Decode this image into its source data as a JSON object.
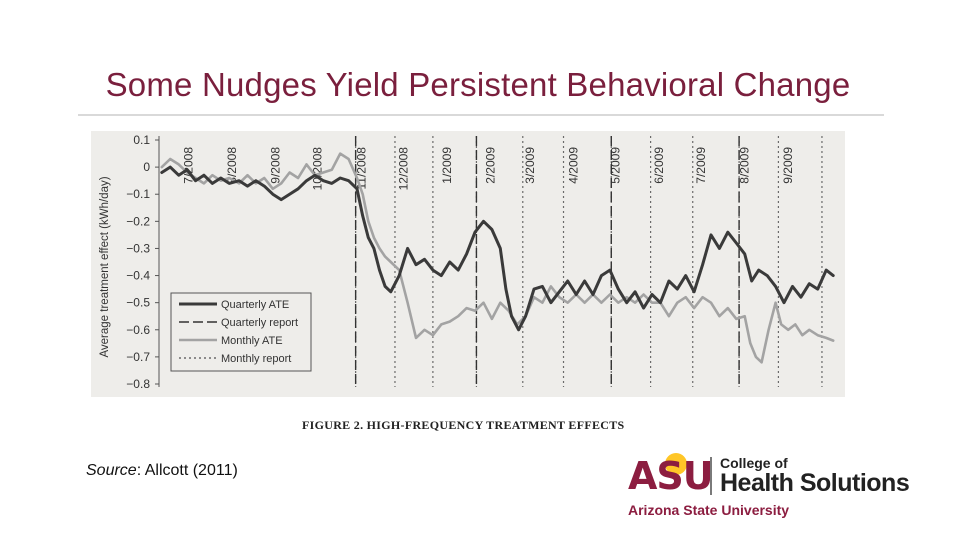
{
  "slide": {
    "title": "Some Nudges Yield Persistent Behavioral Change",
    "source_label": "Source",
    "source_text": ": Allcott (2011)",
    "caption_prefix": "F",
    "caption_small": "IGURE 2. ",
    "caption_text": "FIGURE 2. HIGH-FREQUENCY TREATMENT EFFECTS"
  },
  "logo": {
    "mark": "ASU",
    "line1": "College of",
    "line2": "Health Solutions",
    "line3": "Arizona State University",
    "colors": {
      "maroon": "#8c1d40",
      "gold": "#ffc627"
    }
  },
  "chart_data": {
    "type": "line",
    "title": "",
    "caption": "FIGURE 2. HIGH-FREQUENCY TREATMENT EFFECTS",
    "xlabel": "",
    "ylabel": "Average treatment effect (kWh/day)",
    "ylim": [
      -0.8,
      0.1
    ],
    "yticks": [
      "0.1",
      "0",
      "−0.1",
      "−0.2",
      "−0.3",
      "−0.4",
      "−0.5",
      "−0.6",
      "−0.7",
      "−0.8"
    ],
    "x_domain": [
      "2008-06-10",
      "2009-10-05"
    ],
    "month_labels": [
      "7/2008",
      "8/2008",
      "9/2008",
      "10/2008",
      "11/2008",
      "12/2008",
      "1/2009",
      "2/2009",
      "3/2009",
      "4/2009",
      "5/2009",
      "6/2009",
      "7/2009",
      "8/2009",
      "9/2009"
    ],
    "month_dates": [
      "2008-07-01",
      "2008-08-01",
      "2008-09-01",
      "2008-10-01",
      "2008-11-01",
      "2008-12-01",
      "2009-01-01",
      "2009-02-01",
      "2009-03-01",
      "2009-04-01",
      "2009-05-01",
      "2009-06-01",
      "2009-07-01",
      "2009-08-01",
      "2009-09-01"
    ],
    "quarterly_report_dates": [
      "2008-10-28",
      "2009-01-22",
      "2009-04-28",
      "2009-07-28"
    ],
    "monthly_report_dates": [
      "2008-10-28",
      "2008-11-25",
      "2008-12-22",
      "2009-01-22",
      "2009-02-24",
      "2009-03-25",
      "2009-04-28",
      "2009-05-26",
      "2009-06-25",
      "2009-07-28",
      "2009-08-25",
      "2009-09-25"
    ],
    "legend": {
      "position": "lower-left",
      "entries": [
        "Quarterly ATE",
        "Quarterly report",
        "Monthly ATE",
        "Monthly report"
      ]
    },
    "series": [
      {
        "name": "Quarterly ATE",
        "color": "#3a3a3a",
        "points": [
          [
            "2008-06-12",
            -0.02
          ],
          [
            "2008-06-18",
            0.0
          ],
          [
            "2008-06-24",
            -0.03
          ],
          [
            "2008-06-30",
            -0.01
          ],
          [
            "2008-07-06",
            -0.05
          ],
          [
            "2008-07-12",
            -0.03
          ],
          [
            "2008-07-18",
            -0.06
          ],
          [
            "2008-07-24",
            -0.04
          ],
          [
            "2008-07-30",
            -0.06
          ],
          [
            "2008-08-06",
            -0.05
          ],
          [
            "2008-08-12",
            -0.07
          ],
          [
            "2008-08-18",
            -0.05
          ],
          [
            "2008-08-24",
            -0.07
          ],
          [
            "2008-08-30",
            -0.1
          ],
          [
            "2008-09-05",
            -0.12
          ],
          [
            "2008-09-11",
            -0.1
          ],
          [
            "2008-09-17",
            -0.08
          ],
          [
            "2008-09-23",
            -0.05
          ],
          [
            "2008-09-29",
            -0.03
          ],
          [
            "2008-10-05",
            -0.05
          ],
          [
            "2008-10-11",
            -0.06
          ],
          [
            "2008-10-17",
            -0.04
          ],
          [
            "2008-10-23",
            -0.05
          ],
          [
            "2008-10-29",
            -0.08
          ],
          [
            "2008-11-02",
            -0.18
          ],
          [
            "2008-11-06",
            -0.26
          ],
          [
            "2008-11-10",
            -0.3
          ],
          [
            "2008-11-14",
            -0.38
          ],
          [
            "2008-11-18",
            -0.44
          ],
          [
            "2008-11-22",
            -0.46
          ],
          [
            "2008-11-28",
            -0.4
          ],
          [
            "2008-12-04",
            -0.3
          ],
          [
            "2008-12-10",
            -0.36
          ],
          [
            "2008-12-16",
            -0.34
          ],
          [
            "2008-12-22",
            -0.38
          ],
          [
            "2008-12-28",
            -0.4
          ],
          [
            "2009-01-03",
            -0.35
          ],
          [
            "2009-01-09",
            -0.38
          ],
          [
            "2009-01-15",
            -0.32
          ],
          [
            "2009-01-21",
            -0.24
          ],
          [
            "2009-01-27",
            -0.2
          ],
          [
            "2009-02-02",
            -0.23
          ],
          [
            "2009-02-08",
            -0.3
          ],
          [
            "2009-02-12",
            -0.45
          ],
          [
            "2009-02-16",
            -0.55
          ],
          [
            "2009-02-21",
            -0.6
          ],
          [
            "2009-02-26",
            -0.55
          ],
          [
            "2009-03-04",
            -0.45
          ],
          [
            "2009-03-10",
            -0.44
          ],
          [
            "2009-03-16",
            -0.5
          ],
          [
            "2009-03-22",
            -0.46
          ],
          [
            "2009-03-28",
            -0.42
          ],
          [
            "2009-04-03",
            -0.47
          ],
          [
            "2009-04-09",
            -0.42
          ],
          [
            "2009-04-15",
            -0.47
          ],
          [
            "2009-04-21",
            -0.4
          ],
          [
            "2009-04-27",
            -0.38
          ],
          [
            "2009-05-03",
            -0.45
          ],
          [
            "2009-05-09",
            -0.5
          ],
          [
            "2009-05-15",
            -0.46
          ],
          [
            "2009-05-21",
            -0.52
          ],
          [
            "2009-05-27",
            -0.47
          ],
          [
            "2009-06-02",
            -0.5
          ],
          [
            "2009-06-08",
            -0.42
          ],
          [
            "2009-06-14",
            -0.45
          ],
          [
            "2009-06-20",
            -0.4
          ],
          [
            "2009-06-26",
            -0.46
          ],
          [
            "2009-07-02",
            -0.36
          ],
          [
            "2009-07-08",
            -0.25
          ],
          [
            "2009-07-14",
            -0.3
          ],
          [
            "2009-07-20",
            -0.24
          ],
          [
            "2009-07-26",
            -0.28
          ],
          [
            "2009-08-01",
            -0.32
          ],
          [
            "2009-08-06",
            -0.42
          ],
          [
            "2009-08-11",
            -0.38
          ],
          [
            "2009-08-17",
            -0.4
          ],
          [
            "2009-08-23",
            -0.44
          ],
          [
            "2009-08-29",
            -0.5
          ],
          [
            "2009-09-04",
            -0.44
          ],
          [
            "2009-09-10",
            -0.48
          ],
          [
            "2009-09-16",
            -0.43
          ],
          [
            "2009-09-22",
            -0.45
          ],
          [
            "2009-09-28",
            -0.38
          ],
          [
            "2009-10-03",
            -0.4
          ]
        ]
      },
      {
        "name": "Monthly ATE",
        "color": "#a3a3a3",
        "points": [
          [
            "2008-06-12",
            0.0
          ],
          [
            "2008-06-18",
            0.03
          ],
          [
            "2008-06-24",
            0.01
          ],
          [
            "2008-06-30",
            -0.02
          ],
          [
            "2008-07-06",
            -0.04
          ],
          [
            "2008-07-12",
            -0.06
          ],
          [
            "2008-07-18",
            -0.03
          ],
          [
            "2008-07-24",
            -0.05
          ],
          [
            "2008-07-30",
            -0.04
          ],
          [
            "2008-08-06",
            -0.06
          ],
          [
            "2008-08-12",
            -0.03
          ],
          [
            "2008-08-18",
            -0.06
          ],
          [
            "2008-08-24",
            -0.04
          ],
          [
            "2008-08-30",
            -0.08
          ],
          [
            "2008-09-05",
            -0.06
          ],
          [
            "2008-09-11",
            -0.02
          ],
          [
            "2008-09-17",
            -0.04
          ],
          [
            "2008-09-23",
            0.01
          ],
          [
            "2008-09-29",
            -0.03
          ],
          [
            "2008-10-05",
            -0.02
          ],
          [
            "2008-10-11",
            -0.01
          ],
          [
            "2008-10-17",
            0.05
          ],
          [
            "2008-10-23",
            0.03
          ],
          [
            "2008-10-29",
            -0.04
          ],
          [
            "2008-11-02",
            -0.1
          ],
          [
            "2008-11-06",
            -0.2
          ],
          [
            "2008-11-10",
            -0.26
          ],
          [
            "2008-11-14",
            -0.3
          ],
          [
            "2008-11-18",
            -0.33
          ],
          [
            "2008-11-22",
            -0.35
          ],
          [
            "2008-11-28",
            -0.38
          ],
          [
            "2008-12-04",
            -0.5
          ],
          [
            "2008-12-10",
            -0.63
          ],
          [
            "2008-12-16",
            -0.6
          ],
          [
            "2008-12-22",
            -0.62
          ],
          [
            "2008-12-28",
            -0.58
          ],
          [
            "2009-01-03",
            -0.57
          ],
          [
            "2009-01-09",
            -0.55
          ],
          [
            "2009-01-15",
            -0.52
          ],
          [
            "2009-01-21",
            -0.53
          ],
          [
            "2009-01-27",
            -0.5
          ],
          [
            "2009-02-02",
            -0.56
          ],
          [
            "2009-02-08",
            -0.5
          ],
          [
            "2009-02-14",
            -0.53
          ],
          [
            "2009-02-20",
            -0.58
          ],
          [
            "2009-02-26",
            -0.55
          ],
          [
            "2009-03-04",
            -0.48
          ],
          [
            "2009-03-10",
            -0.5
          ],
          [
            "2009-03-16",
            -0.44
          ],
          [
            "2009-03-22",
            -0.48
          ],
          [
            "2009-03-28",
            -0.5
          ],
          [
            "2009-04-03",
            -0.47
          ],
          [
            "2009-04-09",
            -0.5
          ],
          [
            "2009-04-15",
            -0.47
          ],
          [
            "2009-04-21",
            -0.5
          ],
          [
            "2009-04-27",
            -0.47
          ],
          [
            "2009-05-03",
            -0.5
          ],
          [
            "2009-05-09",
            -0.48
          ],
          [
            "2009-05-15",
            -0.5
          ],
          [
            "2009-05-21",
            -0.47
          ],
          [
            "2009-05-27",
            -0.5
          ],
          [
            "2009-06-02",
            -0.5
          ],
          [
            "2009-06-08",
            -0.55
          ],
          [
            "2009-06-14",
            -0.5
          ],
          [
            "2009-06-20",
            -0.48
          ],
          [
            "2009-06-26",
            -0.52
          ],
          [
            "2009-07-02",
            -0.48
          ],
          [
            "2009-07-08",
            -0.5
          ],
          [
            "2009-07-14",
            -0.55
          ],
          [
            "2009-07-20",
            -0.52
          ],
          [
            "2009-07-26",
            -0.56
          ],
          [
            "2009-08-01",
            -0.55
          ],
          [
            "2009-08-05",
            -0.65
          ],
          [
            "2009-08-09",
            -0.7
          ],
          [
            "2009-08-13",
            -0.72
          ],
          [
            "2009-08-18",
            -0.6
          ],
          [
            "2009-08-23",
            -0.5
          ],
          [
            "2009-08-27",
            -0.58
          ],
          [
            "2009-09-01",
            -0.6
          ],
          [
            "2009-09-06",
            -0.58
          ],
          [
            "2009-09-11",
            -0.62
          ],
          [
            "2009-09-16",
            -0.6
          ],
          [
            "2009-09-22",
            -0.62
          ],
          [
            "2009-09-28",
            -0.63
          ],
          [
            "2009-10-03",
            -0.64
          ]
        ]
      }
    ]
  }
}
